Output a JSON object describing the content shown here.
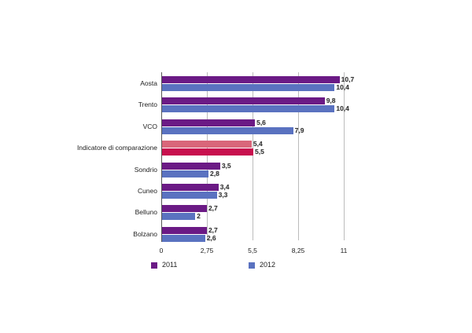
{
  "chart_data": {
    "type": "bar",
    "orientation": "horizontal",
    "title": "",
    "xlabel": "",
    "ylabel": "",
    "xlim": [
      0,
      11
    ],
    "x_ticks": [
      "0",
      "2,75",
      "5,5",
      "8,25",
      "11"
    ],
    "x_tick_values": [
      0,
      2.75,
      5.5,
      8.25,
      11
    ],
    "grid": true,
    "legend_position": "bottom",
    "categories": [
      "Aosta",
      "Trento",
      "VCO",
      "Indicatore di comparazione",
      "Sondrio",
      "Cuneo",
      "Belluno",
      "Bolzano"
    ],
    "series": [
      {
        "name": "2011",
        "color": "#6b1a85",
        "values": [
          10.7,
          9.8,
          5.6,
          5.4,
          3.5,
          3.4,
          2.7,
          2.7
        ],
        "labels": [
          "10,7",
          "9,8",
          "5,6",
          "5,4",
          "3,5",
          "3,4",
          "2,7",
          "2,7"
        ]
      },
      {
        "name": "2012",
        "color": "#5a72c0",
        "values": [
          10.4,
          10.4,
          7.9,
          5.5,
          2.8,
          3.3,
          2.0,
          2.6
        ],
        "labels": [
          "10,4",
          "10,4",
          "7,9",
          "5,5",
          "2,8",
          "3,3",
          "2",
          "2,6"
        ]
      }
    ],
    "highlight": {
      "category": "Indicatore di comparazione",
      "colors": {
        "2011": "#d9667a",
        "2012": "#c8104e"
      }
    }
  },
  "legend": [
    {
      "label": "2011",
      "color": "#6b1a85"
    },
    {
      "label": "2012",
      "color": "#5a72c0"
    }
  ]
}
